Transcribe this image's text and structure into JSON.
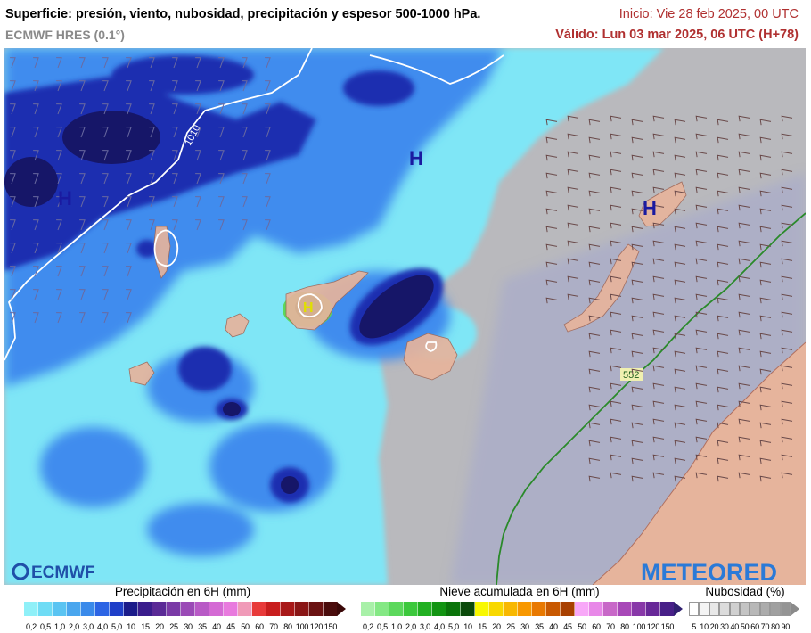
{
  "header": {
    "title": "Superficie: presión, viento, nubosidad, precipitación y espesor 500-1000 hPa.",
    "model": "ECMWF HRES (0.1°)",
    "init": "Inicio: Vie 28 feb 2025, 00 UTC",
    "valid": "Válido: Lun 03 mar 2025, 06 UTC (H+78)"
  },
  "map": {
    "pressure_centers": [
      "H",
      "H",
      "H",
      "H"
    ],
    "isobar_label": "1010",
    "thickness_label": "552",
    "colors": {
      "land": "#e8b8a0",
      "sea_cloud": "#b8b8c4",
      "precip_light": "#7ee8f8",
      "precip_mid": "#2e6ff0",
      "precip_heavy": "#1a1a80",
      "thickness_line": "#2a8a2a"
    }
  },
  "logos": {
    "left": "ECMWF",
    "right": "METEORED"
  },
  "legend": {
    "precip": {
      "title": "Precipitación en 6H (mm)",
      "ticks": [
        "0,2",
        "0,5",
        "1,0",
        "2,0",
        "3,0",
        "4,0",
        "5,0",
        "10",
        "15",
        "20",
        "25",
        "30",
        "35",
        "40",
        "45",
        "50",
        "60",
        "70",
        "80",
        "100",
        "120",
        "150"
      ],
      "colors": [
        "#8ff0f8",
        "#6fdcf5",
        "#5ac4f2",
        "#4aa6ee",
        "#3a8aea",
        "#2c64e4",
        "#1f3fc8",
        "#1b1b8a",
        "#3a1d8c",
        "#5a2a96",
        "#7a3aa6",
        "#9a4ab6",
        "#b85ac6",
        "#d46ad4",
        "#e87ade",
        "#f09ab8",
        "#e83a3a",
        "#c81e1e",
        "#a81818",
        "#8a1616",
        "#6a1212",
        "#4a0c0c"
      ]
    },
    "snow": {
      "title": "Nieve acumulada en 6H (mm)",
      "ticks": [
        "0,2",
        "0,5",
        "1,0",
        "2,0",
        "3,0",
        "4,0",
        "5,0",
        "10",
        "15",
        "20",
        "25",
        "30",
        "35",
        "40",
        "45",
        "50",
        "60",
        "70",
        "80",
        "100",
        "120",
        "150"
      ],
      "colors": [
        "#a8f0a8",
        "#84e884",
        "#5cd85c",
        "#3cc83c",
        "#22b022",
        "#129412",
        "#0a740a",
        "#0a4a0a",
        "#f8f800",
        "#f8d800",
        "#f8b800",
        "#f89800",
        "#e87800",
        "#c85800",
        "#a84000",
        "#f8a8f8",
        "#e888e8",
        "#c868c8",
        "#a848b8",
        "#8838a8",
        "#682898",
        "#482088"
      ]
    },
    "cloud": {
      "title": "Nubosidad (%)",
      "ticks": [
        "5",
        "10",
        "20",
        "30",
        "40",
        "50",
        "60",
        "70",
        "80",
        "90"
      ],
      "colors": [
        "#ffffff",
        "#f4f4f4",
        "#e8e8e8",
        "#dcdcdc",
        "#d0d0d0",
        "#c4c4c4",
        "#b8b8b8",
        "#acacac",
        "#a0a0a0",
        "#949494"
      ]
    }
  }
}
